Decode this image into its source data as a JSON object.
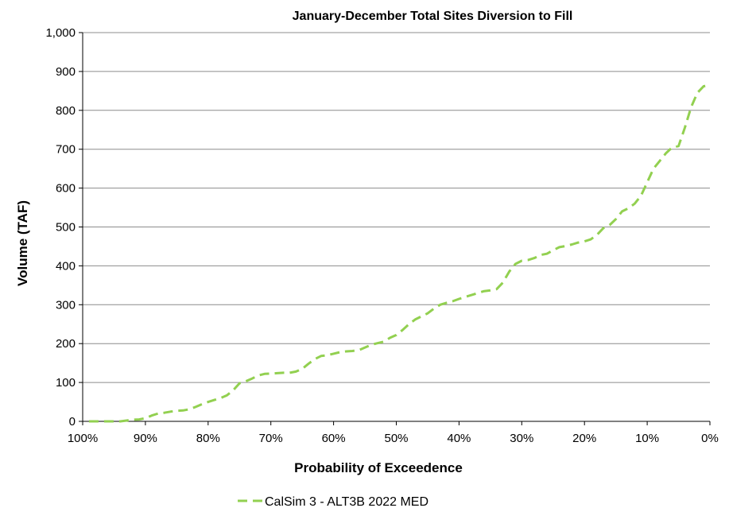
{
  "chart_data": {
    "type": "line",
    "title": "January-December Total Sites Diversion to Fill",
    "xlabel": "Probability of Exceedence",
    "ylabel": "Volume (TAF)",
    "xlim": [
      100,
      0
    ],
    "ylim": [
      0,
      1000
    ],
    "x_ticks": [
      100,
      90,
      80,
      70,
      60,
      50,
      40,
      30,
      20,
      10,
      0
    ],
    "x_tick_labels": [
      "100%",
      "90%",
      "80%",
      "70%",
      "60%",
      "50%",
      "40%",
      "30%",
      "20%",
      "10%",
      "0%"
    ],
    "y_ticks": [
      0,
      100,
      200,
      300,
      400,
      500,
      600,
      700,
      800,
      900,
      1000
    ],
    "y_tick_labels": [
      "0",
      "100",
      "200",
      "300",
      "400",
      "500",
      "600",
      "700",
      "800",
      "900",
      "1,000"
    ],
    "grid": true,
    "legend_position": "bottom",
    "series": [
      {
        "name": "CalSim 3 - ALT3B 2022 MED",
        "color": "#92D050",
        "line_style": "dashed",
        "x": [
          99,
          98,
          97,
          96,
          95,
          94,
          93,
          92,
          91,
          90,
          89,
          88,
          87,
          86,
          85,
          84,
          83,
          82,
          81,
          80,
          79,
          78,
          77,
          76,
          75,
          74,
          73,
          72,
          71,
          70,
          69,
          68,
          67,
          66,
          65,
          64,
          63,
          62,
          61,
          60,
          59,
          58,
          57,
          56,
          55,
          54,
          53,
          52,
          51,
          50,
          49,
          48,
          47,
          46,
          45,
          44,
          43,
          42,
          41,
          40,
          39,
          38,
          37,
          36,
          35,
          34,
          33,
          32,
          31,
          30,
          29,
          28,
          27,
          26,
          25,
          24,
          23,
          22,
          21,
          20,
          19,
          18,
          17,
          16,
          15,
          14,
          13,
          12,
          11,
          10,
          9,
          8,
          7,
          6,
          5,
          4,
          3,
          2,
          1,
          0
        ],
        "values": [
          0,
          0,
          0,
          0,
          0,
          0,
          2,
          4,
          5,
          8,
          15,
          20,
          22,
          25,
          27,
          28,
          31,
          37,
          44,
          50,
          55,
          60,
          67,
          80,
          98,
          103,
          110,
          118,
          122,
          123,
          124,
          125,
          125,
          128,
          135,
          148,
          160,
          168,
          170,
          174,
          178,
          180,
          181,
          183,
          190,
          197,
          201,
          205,
          215,
          222,
          235,
          250,
          262,
          270,
          278,
          290,
          300,
          305,
          309,
          315,
          320,
          325,
          330,
          335,
          337,
          340,
          357,
          385,
          405,
          413,
          415,
          420,
          428,
          431,
          440,
          448,
          451,
          455,
          460,
          463,
          468,
          480,
          497,
          505,
          520,
          540,
          548,
          560,
          580,
          615,
          650,
          670,
          690,
          705,
          708,
          755,
          808,
          845,
          862,
          865
        ]
      }
    ]
  }
}
